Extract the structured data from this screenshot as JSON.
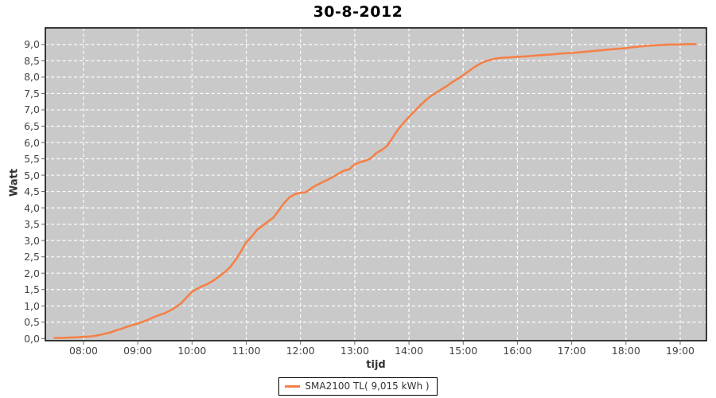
{
  "title": "30-8-2012",
  "axis": {
    "x_title": "tijd",
    "y_title": "Watt"
  },
  "legend": {
    "label": "SMA2100 TL( 9,015 kWh )"
  },
  "colors": {
    "background": "#ffffff",
    "plot_bg": "#c9c9c9",
    "grid": "#ffffff",
    "series": "#f58048",
    "plot_border": "#000000",
    "tick_mark": "#666666",
    "tick_label": "#444444",
    "axis_title": "#333333"
  },
  "chart_data": {
    "type": "line",
    "title": "30-8-2012",
    "xlabel": "tijd",
    "ylabel": "Watt",
    "grid": true,
    "grid_style": "white-dashed",
    "legend_position": "bottom-center",
    "x_tick_hours": [
      8,
      9,
      10,
      11,
      12,
      13,
      14,
      15,
      16,
      17,
      18,
      19
    ],
    "x_tick_labels": [
      "08:00",
      "09:00",
      "10:00",
      "11:00",
      "12:00",
      "13:00",
      "14:00",
      "15:00",
      "16:00",
      "17:00",
      "18:00",
      "19:00"
    ],
    "y_tick_values": [
      0,
      0.5,
      1,
      1.5,
      2,
      2.5,
      3,
      3.5,
      4,
      4.5,
      5,
      5.5,
      6,
      6.5,
      7,
      7.5,
      8,
      8.5,
      9
    ],
    "y_tick_labels": [
      "0,0",
      "0,5",
      "1,0",
      "1,5",
      "2,0",
      "2,5",
      "3,0",
      "3,5",
      "4,0",
      "4,5",
      "5,0",
      "5,5",
      "6,0",
      "6,5",
      "7,0",
      "7,5",
      "8,0",
      "8,5",
      "9,0"
    ],
    "x_range_hours": [
      7.3,
      19.48
    ],
    "ylim": [
      -0.07,
      9.56
    ],
    "series": [
      {
        "name": "SMA2100 TL( 9,015 kWh )",
        "color": "#f58048",
        "total_kwh_label": "9,015 kWh",
        "points": [
          [
            7.45,
            0.02
          ],
          [
            7.6,
            0.02
          ],
          [
            7.75,
            0.03
          ],
          [
            7.9,
            0.04
          ],
          [
            8.0,
            0.05
          ],
          [
            8.1,
            0.06
          ],
          [
            8.2,
            0.08
          ],
          [
            8.3,
            0.11
          ],
          [
            8.4,
            0.15
          ],
          [
            8.5,
            0.19
          ],
          [
            8.6,
            0.25
          ],
          [
            8.7,
            0.3
          ],
          [
            8.8,
            0.36
          ],
          [
            8.9,
            0.41
          ],
          [
            9.0,
            0.46
          ],
          [
            9.1,
            0.52
          ],
          [
            9.2,
            0.58
          ],
          [
            9.3,
            0.66
          ],
          [
            9.4,
            0.72
          ],
          [
            9.5,
            0.78
          ],
          [
            9.6,
            0.86
          ],
          [
            9.7,
            0.96
          ],
          [
            9.8,
            1.08
          ],
          [
            9.9,
            1.26
          ],
          [
            10.0,
            1.43
          ],
          [
            10.1,
            1.53
          ],
          [
            10.2,
            1.61
          ],
          [
            10.3,
            1.68
          ],
          [
            10.4,
            1.78
          ],
          [
            10.5,
            1.9
          ],
          [
            10.6,
            2.03
          ],
          [
            10.7,
            2.18
          ],
          [
            10.8,
            2.4
          ],
          [
            10.9,
            2.66
          ],
          [
            11.0,
            2.95
          ],
          [
            11.1,
            3.12
          ],
          [
            11.2,
            3.33
          ],
          [
            11.3,
            3.45
          ],
          [
            11.4,
            3.58
          ],
          [
            11.5,
            3.7
          ],
          [
            11.6,
            3.92
          ],
          [
            11.7,
            4.15
          ],
          [
            11.8,
            4.33
          ],
          [
            11.9,
            4.42
          ],
          [
            12.0,
            4.46
          ],
          [
            12.1,
            4.48
          ],
          [
            12.2,
            4.6
          ],
          [
            12.3,
            4.7
          ],
          [
            12.4,
            4.78
          ],
          [
            12.5,
            4.86
          ],
          [
            12.6,
            4.95
          ],
          [
            12.7,
            5.04
          ],
          [
            12.8,
            5.14
          ],
          [
            12.9,
            5.18
          ],
          [
            12.95,
            5.26
          ],
          [
            13.0,
            5.33
          ],
          [
            13.1,
            5.4
          ],
          [
            13.2,
            5.44
          ],
          [
            13.3,
            5.52
          ],
          [
            13.4,
            5.68
          ],
          [
            13.5,
            5.77
          ],
          [
            13.6,
            5.9
          ],
          [
            13.7,
            6.15
          ],
          [
            13.8,
            6.4
          ],
          [
            13.9,
            6.6
          ],
          [
            14.0,
            6.79
          ],
          [
            14.1,
            6.95
          ],
          [
            14.2,
            7.12
          ],
          [
            14.3,
            7.28
          ],
          [
            14.4,
            7.42
          ],
          [
            14.5,
            7.52
          ],
          [
            14.6,
            7.63
          ],
          [
            14.7,
            7.73
          ],
          [
            14.8,
            7.85
          ],
          [
            14.9,
            7.95
          ],
          [
            15.0,
            8.06
          ],
          [
            15.1,
            8.18
          ],
          [
            15.2,
            8.3
          ],
          [
            15.3,
            8.4
          ],
          [
            15.4,
            8.48
          ],
          [
            15.5,
            8.53
          ],
          [
            15.6,
            8.57
          ],
          [
            15.7,
            8.59
          ],
          [
            15.8,
            8.6
          ],
          [
            15.9,
            8.61
          ],
          [
            16.0,
            8.62
          ],
          [
            16.2,
            8.64
          ],
          [
            16.4,
            8.67
          ],
          [
            16.6,
            8.69
          ],
          [
            16.8,
            8.72
          ],
          [
            17.0,
            8.74
          ],
          [
            17.2,
            8.77
          ],
          [
            17.4,
            8.8
          ],
          [
            17.6,
            8.83
          ],
          [
            17.8,
            8.86
          ],
          [
            18.0,
            8.89
          ],
          [
            18.2,
            8.93
          ],
          [
            18.4,
            8.96
          ],
          [
            18.6,
            8.98
          ],
          [
            18.8,
            9.0
          ],
          [
            19.0,
            9.0
          ],
          [
            19.1,
            9.01
          ],
          [
            19.2,
            9.01
          ],
          [
            19.3,
            9.01
          ]
        ]
      }
    ]
  }
}
